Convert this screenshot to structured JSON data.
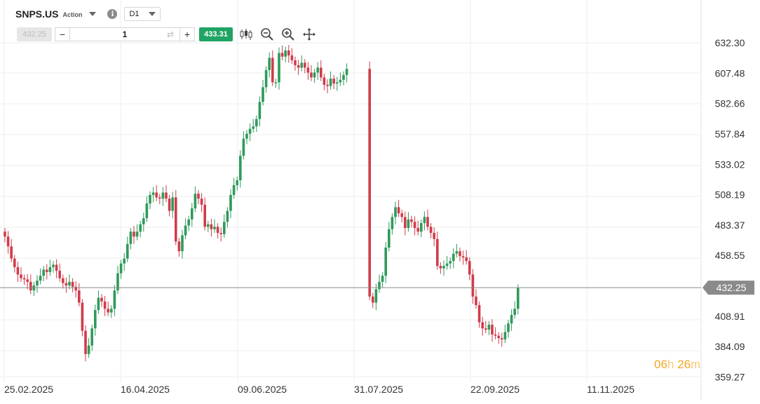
{
  "toolbar": {
    "symbol": "SNPS.US",
    "symbol_type": "Action",
    "timeframe": "D1",
    "sell_price": "432.25",
    "quantity": "1",
    "buy_price": "433.31",
    "tools": [
      "candlestick-type-icon",
      "zoom-out-icon",
      "zoom-in-icon",
      "move-icon"
    ]
  },
  "timer": {
    "hours": "06",
    "hours_unit": "h",
    "minutes": "26",
    "minutes_unit": "m"
  },
  "colors": {
    "up": "#2e9a5a",
    "down": "#d13b4a",
    "grid": "#ececec",
    "price_line": "#8a8a8a",
    "axis_text": "#333333"
  },
  "chart_data": {
    "type": "candlestick",
    "y_ticks": [
      "632.30",
      "607.48",
      "582.66",
      "557.84",
      "533.02",
      "508.19",
      "483.37",
      "458.55",
      "432.25",
      "408.91",
      "384.09",
      "359.27"
    ],
    "x_ticks": [
      "25.02.2025",
      "16.04.2025",
      "09.06.2025",
      "31.07.2025",
      "22.09.2025",
      "11.11.2025"
    ],
    "ylim": [
      359.27,
      644.7
    ],
    "current_price": "432.25",
    "grid": true,
    "close": [
      474,
      466,
      456,
      449,
      443,
      440,
      439,
      437,
      430,
      434,
      438,
      442,
      447,
      445,
      449,
      451,
      446,
      440,
      436,
      434,
      437,
      433,
      430,
      420,
      397,
      378,
      385,
      399,
      414,
      424,
      421,
      415,
      412,
      415,
      430,
      444,
      452,
      456,
      468,
      478,
      474,
      478,
      484,
      489,
      501,
      508,
      510,
      506,
      505,
      510,
      505,
      495,
      506,
      470,
      462,
      475,
      483,
      488,
      497,
      509,
      505,
      500,
      482,
      484,
      480,
      482,
      477,
      476,
      486,
      495,
      508,
      516,
      520,
      540,
      554,
      558,
      562,
      564,
      570,
      584,
      596,
      610,
      620,
      600,
      600,
      624,
      621,
      626,
      622,
      618,
      614,
      612,
      616,
      612,
      608,
      604,
      608,
      612,
      604,
      598,
      597,
      603,
      599,
      600,
      602,
      606,
      611,
      425,
      420,
      431,
      437,
      442,
      465,
      480,
      490,
      498,
      493,
      490,
      481,
      488,
      486,
      481,
      478,
      485,
      490,
      482,
      477,
      472,
      450,
      448,
      450,
      452,
      454,
      460,
      462,
      458,
      457,
      454,
      443,
      425,
      418,
      404,
      399,
      398,
      402,
      394,
      393,
      391,
      390,
      396,
      403,
      410,
      415,
      432
    ]
  }
}
